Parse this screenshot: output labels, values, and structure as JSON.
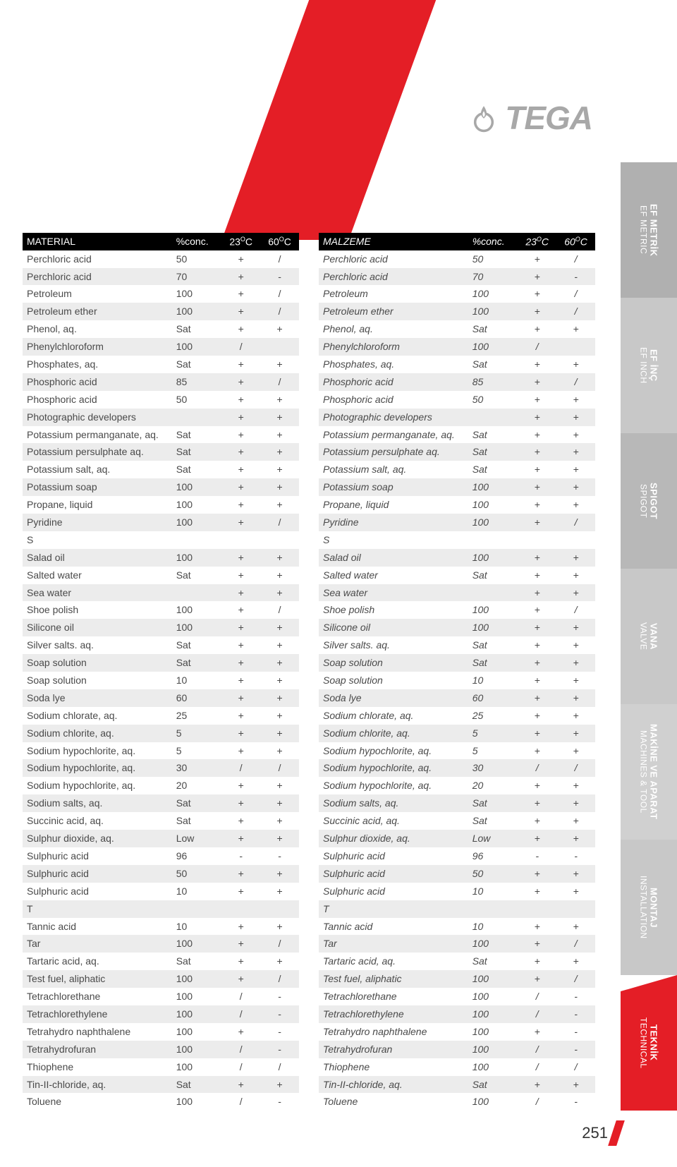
{
  "brand": "TEGA",
  "page_number": "251",
  "sideTabs": [
    {
      "line1": "EF METRİK",
      "line2": "EF METRIC",
      "cls": "g1"
    },
    {
      "line1": "EF İNÇ",
      "line2": "EF INCH",
      "cls": "g2"
    },
    {
      "line1": "SPIGOT",
      "line2": "SPIGOT",
      "cls": "g3"
    },
    {
      "line1": "VANA",
      "line2": "VALVE",
      "cls": "g4"
    },
    {
      "line1": "MAKİNE VE APARAT",
      "line2": "MACHINES & TOOL",
      "cls": "g5"
    },
    {
      "line1": "MONTAJ",
      "line2": "INSTALLATION",
      "cls": "g6"
    },
    {
      "line1": "TEKNİK",
      "line2": "TECHNICAL",
      "cls": "red"
    }
  ],
  "headers": {
    "left": {
      "c1": "MATERIAL",
      "c2": "%conc.",
      "c3": "23",
      "c4": "60"
    },
    "right": {
      "c1": "MALZEME",
      "c2": "%conc.",
      "c3": "23",
      "c4": "60"
    }
  },
  "rows": [
    {
      "name": "Perchloric acid",
      "conc": "50",
      "t23": "+",
      "t60": "/",
      "shaded": false
    },
    {
      "name": "Perchloric acid",
      "conc": "70",
      "t23": "+",
      "t60": "-",
      "shaded": true
    },
    {
      "name": "Petroleum",
      "conc": "100",
      "t23": "+",
      "t60": "/",
      "shaded": false
    },
    {
      "name": "Petroleum ether",
      "conc": "100",
      "t23": "+",
      "t60": "/",
      "shaded": true
    },
    {
      "name": "Phenol, aq.",
      "conc": "Sat",
      "t23": "+",
      "t60": "+",
      "shaded": false
    },
    {
      "name": "Phenylchloroform",
      "conc": "100",
      "t23": "/",
      "t60": "",
      "shaded": true
    },
    {
      "name": "Phosphates, aq.",
      "conc": "Sat",
      "t23": "+",
      "t60": "+",
      "shaded": false
    },
    {
      "name": "Phosphoric acid",
      "conc": "85",
      "t23": "+",
      "t60": "/",
      "shaded": true
    },
    {
      "name": "Phosphoric acid",
      "conc": "50",
      "t23": "+",
      "t60": "+",
      "shaded": false
    },
    {
      "name": "Photographic developers",
      "conc": "",
      "t23": "+",
      "t60": "+",
      "shaded": true
    },
    {
      "name": "Potassium permanganate, aq.",
      "conc": "Sat",
      "t23": "+",
      "t60": "+",
      "shaded": false
    },
    {
      "name": "Potassium persulphate aq.",
      "conc": "Sat",
      "t23": "+",
      "t60": "+",
      "shaded": true
    },
    {
      "name": "Potassium salt, aq.",
      "conc": "Sat",
      "t23": "+",
      "t60": "+",
      "shaded": false
    },
    {
      "name": "Potassium soap",
      "conc": "100",
      "t23": "+",
      "t60": "+",
      "shaded": true
    },
    {
      "name": "Propane, liquid",
      "conc": "100",
      "t23": "+",
      "t60": "+",
      "shaded": false
    },
    {
      "name": "Pyridine",
      "conc": "100",
      "t23": "+",
      "t60": "/",
      "shaded": true
    },
    {
      "name": "S",
      "conc": "",
      "t23": "",
      "t60": "",
      "shaded": false
    },
    {
      "name": "Salad oil",
      "conc": "100",
      "t23": "+",
      "t60": "+",
      "shaded": true
    },
    {
      "name": "Salted water",
      "conc": "Sat",
      "t23": "+",
      "t60": "+",
      "shaded": false
    },
    {
      "name": "Sea water",
      "conc": "",
      "t23": "+",
      "t60": "+",
      "shaded": true
    },
    {
      "name": "Shoe polish",
      "conc": "100",
      "t23": "+",
      "t60": "/",
      "shaded": false
    },
    {
      "name": "Silicone oil",
      "conc": "100",
      "t23": "+",
      "t60": "+",
      "shaded": true
    },
    {
      "name": "Silver salts. aq.",
      "conc": "Sat",
      "t23": "+",
      "t60": "+",
      "shaded": false
    },
    {
      "name": "Soap solution",
      "conc": "Sat",
      "t23": "+",
      "t60": "+",
      "shaded": true
    },
    {
      "name": "Soap solution",
      "conc": "10",
      "t23": "+",
      "t60": "+",
      "shaded": false
    },
    {
      "name": "Soda lye",
      "conc": "60",
      "t23": "+",
      "t60": "+",
      "shaded": true
    },
    {
      "name": "Sodium chlorate, aq.",
      "conc": "25",
      "t23": "+",
      "t60": "+",
      "shaded": false
    },
    {
      "name": "Sodium chlorite, aq.",
      "conc": "5",
      "t23": "+",
      "t60": "+",
      "shaded": true
    },
    {
      "name": "Sodium hypochlorite, aq.",
      "conc": "5",
      "t23": "+",
      "t60": "+",
      "shaded": false
    },
    {
      "name": "Sodium hypochlorite, aq.",
      "conc": "30",
      "t23": "/",
      "t60": "/",
      "shaded": true
    },
    {
      "name": "Sodium hypochlorite, aq.",
      "conc": "20",
      "t23": "+",
      "t60": "+",
      "shaded": false
    },
    {
      "name": "Sodium salts, aq.",
      "conc": "Sat",
      "t23": "+",
      "t60": "+",
      "shaded": true
    },
    {
      "name": "Succinic acid, aq.",
      "conc": "Sat",
      "t23": "+",
      "t60": "+",
      "shaded": false
    },
    {
      "name": "Sulphur dioxide, aq.",
      "conc": "Low",
      "t23": "+",
      "t60": "+",
      "shaded": true
    },
    {
      "name": "Sulphuric acid",
      "conc": "96",
      "t23": "-",
      "t60": "-",
      "shaded": false
    },
    {
      "name": "Sulphuric acid",
      "conc": "50",
      "t23": "+",
      "t60": "+",
      "shaded": true
    },
    {
      "name": "Sulphuric acid",
      "conc": "10",
      "t23": "+",
      "t60": "+",
      "shaded": false
    },
    {
      "name": "T",
      "conc": "",
      "t23": "",
      "t60": "",
      "shaded": true
    },
    {
      "name": "Tannic acid",
      "conc": "10",
      "t23": "+",
      "t60": "+",
      "shaded": false
    },
    {
      "name": "Tar",
      "conc": "100",
      "t23": "+",
      "t60": "/",
      "shaded": true
    },
    {
      "name": "Tartaric acid, aq.",
      "conc": "Sat",
      "t23": "+",
      "t60": "+",
      "shaded": false
    },
    {
      "name": "Test fuel, aliphatic",
      "conc": "100",
      "t23": "+",
      "t60": "/",
      "shaded": true
    },
    {
      "name": "Tetrachlorethane",
      "conc": "100",
      "t23": "/",
      "t60": "-",
      "shaded": false
    },
    {
      "name": "Tetrachlorethylene",
      "conc": "100",
      "t23": "/",
      "t60": "-",
      "shaded": true
    },
    {
      "name": "Tetrahydro naphthalene",
      "conc": "100",
      "t23": "+",
      "t60": "-",
      "shaded": false
    },
    {
      "name": "Tetrahydrofuran",
      "conc": "100",
      "t23": "/",
      "t60": "-",
      "shaded": true
    },
    {
      "name": "Thiophene",
      "conc": "100",
      "t23": "/",
      "t60": "/",
      "shaded": false
    },
    {
      "name": "Tin-II-chloride, aq.",
      "conc": "Sat",
      "t23": "+",
      "t60": "+",
      "shaded": true
    },
    {
      "name": "Toluene",
      "conc": "100",
      "t23": "/",
      "t60": "-",
      "shaded": false
    }
  ]
}
